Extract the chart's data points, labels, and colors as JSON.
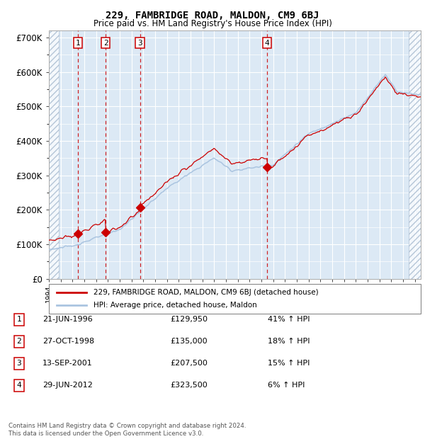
{
  "title": "229, FAMBRIDGE ROAD, MALDON, CM9 6BJ",
  "subtitle": "Price paid vs. HM Land Registry's House Price Index (HPI)",
  "ylim": [
    0,
    720000
  ],
  "yticks": [
    0,
    100000,
    200000,
    300000,
    400000,
    500000,
    600000,
    700000
  ],
  "ytick_labels": [
    "£0",
    "£100K",
    "£200K",
    "£300K",
    "£400K",
    "£500K",
    "£600K",
    "£700K"
  ],
  "plot_bg_color": "#dce9f5",
  "grid_color": "#ffffff",
  "red_line_color": "#cc0000",
  "blue_line_color": "#aac4e0",
  "vline_color": "#cc0000",
  "sale_marker_color": "#cc0000",
  "sale_dates": [
    1996.47,
    1998.82,
    2001.71,
    2012.49
  ],
  "sale_prices": [
    129950,
    135000,
    207500,
    323500
  ],
  "sale_labels": [
    "1",
    "2",
    "3",
    "4"
  ],
  "footnote": "Contains HM Land Registry data © Crown copyright and database right 2024.\nThis data is licensed under the Open Government Licence v3.0.",
  "legend_red": "229, FAMBRIDGE ROAD, MALDON, CM9 6BJ (detached house)",
  "legend_blue": "HPI: Average price, detached house, Maldon",
  "table_rows": [
    [
      "1",
      "21-JUN-1996",
      "£129,950",
      "41% ↑ HPI"
    ],
    [
      "2",
      "27-OCT-1998",
      "£135,000",
      "18% ↑ HPI"
    ],
    [
      "3",
      "13-SEP-2001",
      "£207,500",
      "15% ↑ HPI"
    ],
    [
      "4",
      "29-JUN-2012",
      "£323,500",
      "6% ↑ HPI"
    ]
  ],
  "xmin": 1994.0,
  "xmax": 2025.5,
  "hatch_left_end": 1994.83,
  "hatch_right_start": 2024.5
}
